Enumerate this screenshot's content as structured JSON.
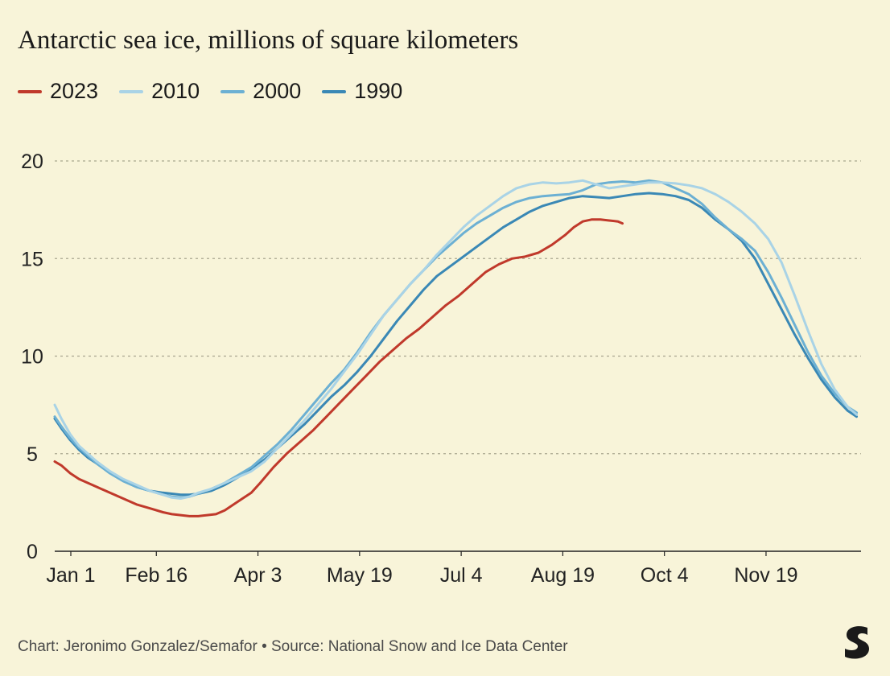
{
  "chart_data": {
    "type": "line",
    "title": "Antarctic sea ice, millions of square kilometers",
    "xlabel": "",
    "ylabel": "",
    "ylim": [
      0,
      20
    ],
    "yticks": [
      0,
      5,
      10,
      15,
      20
    ],
    "xlim": [
      1,
      366
    ],
    "xtick_days": [
      1,
      47,
      93,
      139,
      185,
      231,
      277,
      323
    ],
    "xtick_labels": [
      "Jan 1",
      "Feb 16",
      "Apr 3",
      "May 19",
      "Jul 4",
      "Aug 19",
      "Oct 4",
      "Nov 19"
    ],
    "grid": true,
    "legend_position": "top-left",
    "series": [
      {
        "name": "2023",
        "color": "#c0392b",
        "x": [
          1,
          4,
          8,
          12,
          16,
          20,
          26,
          32,
          38,
          44,
          50,
          54,
          58,
          62,
          66,
          70,
          74,
          78,
          82,
          86,
          90,
          94,
          100,
          106,
          112,
          118,
          124,
          130,
          136,
          142,
          148,
          154,
          160,
          166,
          172,
          178,
          184,
          190,
          196,
          202,
          208,
          214,
          220,
          226,
          232,
          236,
          240,
          244,
          248,
          252,
          256,
          258
        ],
        "y": [
          4.6,
          4.4,
          4.0,
          3.7,
          3.5,
          3.3,
          3.0,
          2.7,
          2.4,
          2.2,
          2.0,
          1.9,
          1.85,
          1.8,
          1.8,
          1.85,
          1.9,
          2.1,
          2.4,
          2.7,
          3.0,
          3.5,
          4.3,
          5.0,
          5.6,
          6.2,
          6.9,
          7.6,
          8.3,
          9.0,
          9.7,
          10.3,
          10.9,
          11.4,
          12.0,
          12.6,
          13.1,
          13.7,
          14.3,
          14.7,
          15.0,
          15.1,
          15.3,
          15.7,
          16.2,
          16.6,
          16.9,
          17.0,
          17.0,
          16.95,
          16.9,
          16.8
        ]
      },
      {
        "name": "2010",
        "color": "#a9d3e6",
        "x": [
          1,
          4,
          8,
          12,
          16,
          20,
          26,
          32,
          38,
          44,
          50,
          54,
          58,
          62,
          66,
          72,
          78,
          84,
          90,
          96,
          102,
          108,
          114,
          120,
          126,
          132,
          138,
          144,
          150,
          156,
          162,
          168,
          174,
          180,
          186,
          192,
          198,
          204,
          210,
          216,
          222,
          228,
          234,
          240,
          246,
          252,
          258,
          264,
          270,
          276,
          282,
          288,
          294,
          300,
          306,
          312,
          318,
          324,
          330,
          336,
          342,
          348,
          354,
          360,
          364
        ],
        "y": [
          7.5,
          6.8,
          6.0,
          5.4,
          5.0,
          4.6,
          4.1,
          3.7,
          3.4,
          3.1,
          2.9,
          2.75,
          2.7,
          2.8,
          3.0,
          3.2,
          3.5,
          3.8,
          4.1,
          4.6,
          5.3,
          6.0,
          6.7,
          7.5,
          8.3,
          9.2,
          10.1,
          11.1,
          12.1,
          12.9,
          13.7,
          14.4,
          15.2,
          15.9,
          16.6,
          17.2,
          17.7,
          18.2,
          18.6,
          18.8,
          18.9,
          18.85,
          18.9,
          19.0,
          18.8,
          18.6,
          18.7,
          18.8,
          18.9,
          18.9,
          18.85,
          18.75,
          18.6,
          18.3,
          17.9,
          17.4,
          16.8,
          16.0,
          14.8,
          13.1,
          11.3,
          9.6,
          8.3,
          7.4,
          7.0
        ]
      },
      {
        "name": "2000",
        "color": "#6cb0d3",
        "x": [
          1,
          4,
          8,
          12,
          16,
          20,
          26,
          32,
          38,
          44,
          50,
          54,
          58,
          62,
          66,
          72,
          78,
          84,
          90,
          96,
          102,
          108,
          114,
          120,
          126,
          132,
          138,
          144,
          150,
          156,
          162,
          168,
          174,
          180,
          186,
          192,
          198,
          204,
          210,
          216,
          222,
          228,
          234,
          240,
          246,
          252,
          258,
          264,
          270,
          276,
          282,
          288,
          294,
          300,
          306,
          312,
          318,
          324,
          330,
          336,
          342,
          348,
          354,
          360,
          364
        ],
        "y": [
          6.9,
          6.4,
          5.8,
          5.3,
          4.9,
          4.5,
          4.0,
          3.6,
          3.3,
          3.1,
          2.9,
          2.8,
          2.75,
          2.8,
          2.95,
          3.2,
          3.5,
          3.9,
          4.3,
          4.9,
          5.5,
          6.2,
          7.0,
          7.8,
          8.6,
          9.3,
          10.2,
          11.2,
          12.1,
          12.9,
          13.7,
          14.4,
          15.1,
          15.7,
          16.3,
          16.8,
          17.2,
          17.6,
          17.9,
          18.1,
          18.2,
          18.25,
          18.3,
          18.5,
          18.8,
          18.9,
          18.95,
          18.9,
          19.0,
          18.9,
          18.6,
          18.3,
          17.8,
          17.1,
          16.5,
          16.0,
          15.4,
          14.3,
          13.0,
          11.6,
          10.2,
          9.0,
          8.1,
          7.4,
          7.1
        ]
      },
      {
        "name": "1990",
        "color": "#3a88b5",
        "x": [
          1,
          4,
          8,
          12,
          16,
          20,
          26,
          32,
          38,
          44,
          50,
          54,
          58,
          62,
          66,
          72,
          78,
          84,
          90,
          96,
          102,
          108,
          114,
          120,
          126,
          132,
          138,
          144,
          150,
          156,
          162,
          168,
          174,
          180,
          186,
          192,
          198,
          204,
          210,
          216,
          222,
          228,
          234,
          240,
          246,
          252,
          258,
          264,
          270,
          276,
          282,
          288,
          294,
          300,
          306,
          312,
          318,
          324,
          330,
          336,
          342,
          348,
          354,
          360,
          364
        ],
        "y": [
          6.8,
          6.3,
          5.7,
          5.2,
          4.8,
          4.5,
          4.0,
          3.6,
          3.3,
          3.1,
          3.0,
          2.95,
          2.9,
          2.9,
          2.95,
          3.1,
          3.4,
          3.8,
          4.2,
          4.7,
          5.3,
          5.9,
          6.5,
          7.2,
          7.9,
          8.5,
          9.2,
          10.0,
          10.9,
          11.8,
          12.6,
          13.4,
          14.1,
          14.6,
          15.1,
          15.6,
          16.1,
          16.6,
          17.0,
          17.4,
          17.7,
          17.9,
          18.1,
          18.2,
          18.15,
          18.1,
          18.2,
          18.3,
          18.35,
          18.3,
          18.2,
          18.0,
          17.6,
          17.0,
          16.5,
          15.9,
          15.0,
          13.7,
          12.4,
          11.1,
          9.9,
          8.8,
          7.9,
          7.2,
          6.9
        ]
      }
    ]
  },
  "footer": {
    "source": "Chart: Jeronimo Gonzalez/Semafor • Source: National Snow and Ice Data Center",
    "logo_icon": "semafor-s-logo-icon"
  }
}
